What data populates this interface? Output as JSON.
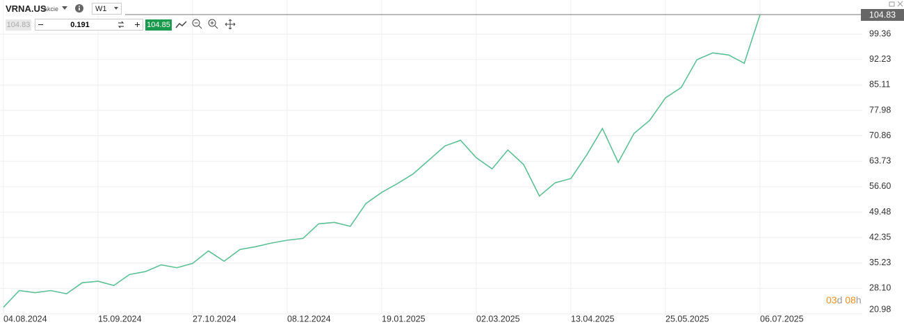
{
  "toolbar": {
    "symbol": "VRNA.US",
    "instrument_type": "Akcie",
    "timeframe": "W1",
    "bid": "104.83",
    "volume": "0.191",
    "ask": "104.85"
  },
  "countdown": {
    "days": "03",
    "days_unit": "d",
    "hours": "08",
    "hours_unit": "h"
  },
  "chart_data": {
    "type": "line",
    "color": "#5cbf94",
    "grid": true,
    "price_line": 104.83,
    "categories": [
      "04.08.2024",
      null,
      null,
      null,
      null,
      null,
      "15.09.2024",
      null,
      null,
      null,
      null,
      null,
      "27.10.2024",
      null,
      null,
      null,
      null,
      null,
      "08.12.2024",
      null,
      null,
      null,
      null,
      null,
      "19.01.2025",
      null,
      null,
      null,
      null,
      null,
      "02.03.2025",
      null,
      null,
      null,
      null,
      null,
      "13.04.2025",
      null,
      null,
      null,
      null,
      null,
      "25.05.2025",
      null,
      null,
      null,
      null,
      null,
      "06.07.2025"
    ],
    "values": [
      22.8,
      27.5,
      26.9,
      27.5,
      26.6,
      29.7,
      30.1,
      28.9,
      32.0,
      32.8,
      34.7,
      33.9,
      35.1,
      38.6,
      35.7,
      39.0,
      39.8,
      40.8,
      41.6,
      42.1,
      46.2,
      46.6,
      45.5,
      51.9,
      55.0,
      57.5,
      60.2,
      64.1,
      68.0,
      69.6,
      64.7,
      61.6,
      66.9,
      62.8,
      54.0,
      57.7,
      58.9,
      65.5,
      72.9,
      63.4,
      71.5,
      75.2,
      81.5,
      84.4,
      92.2,
      94.1,
      93.5,
      91.2,
      104.83
    ],
    "ylim": [
      20.98,
      104.83
    ],
    "yticks": [
      20.98,
      {
        "value": 28.1,
        "label": "28.10"
      },
      35.23,
      42.35,
      49.48,
      {
        "value": 56.6,
        "label": "56.60"
      },
      63.73,
      70.86,
      77.98,
      85.11,
      92.23,
      99.36
    ]
  }
}
